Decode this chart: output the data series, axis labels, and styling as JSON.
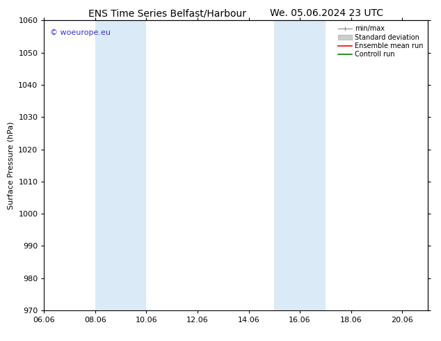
{
  "title_left": "ENS Time Series Belfast/Harbour",
  "title_right": "We. 05.06.2024 23 UTC",
  "ylabel": "Surface Pressure (hPa)",
  "ylim": [
    970,
    1060
  ],
  "yticks": [
    970,
    980,
    990,
    1000,
    1010,
    1020,
    1030,
    1040,
    1050,
    1060
  ],
  "xlim_start": 6.06,
  "xlim_end": 21.06,
  "xticks": [
    6.06,
    8.06,
    10.06,
    12.06,
    14.06,
    16.06,
    18.06,
    20.06
  ],
  "xlabel_labels": [
    "06.06",
    "08.06",
    "10.06",
    "12.06",
    "14.06",
    "16.06",
    "18.06",
    "20.06"
  ],
  "shaded_bands": [
    {
      "xmin": 8.06,
      "xmax": 10.06,
      "color": "#daeaf7"
    },
    {
      "xmin": 15.06,
      "xmax": 17.06,
      "color": "#daeaf7"
    }
  ],
  "watermark_text": "© woeurope.eu",
  "watermark_color": "#3333cc",
  "background_color": "#ffffff",
  "plot_bg_color": "#ffffff",
  "title_fontsize": 10,
  "axis_label_fontsize": 8,
  "tick_fontsize": 8
}
